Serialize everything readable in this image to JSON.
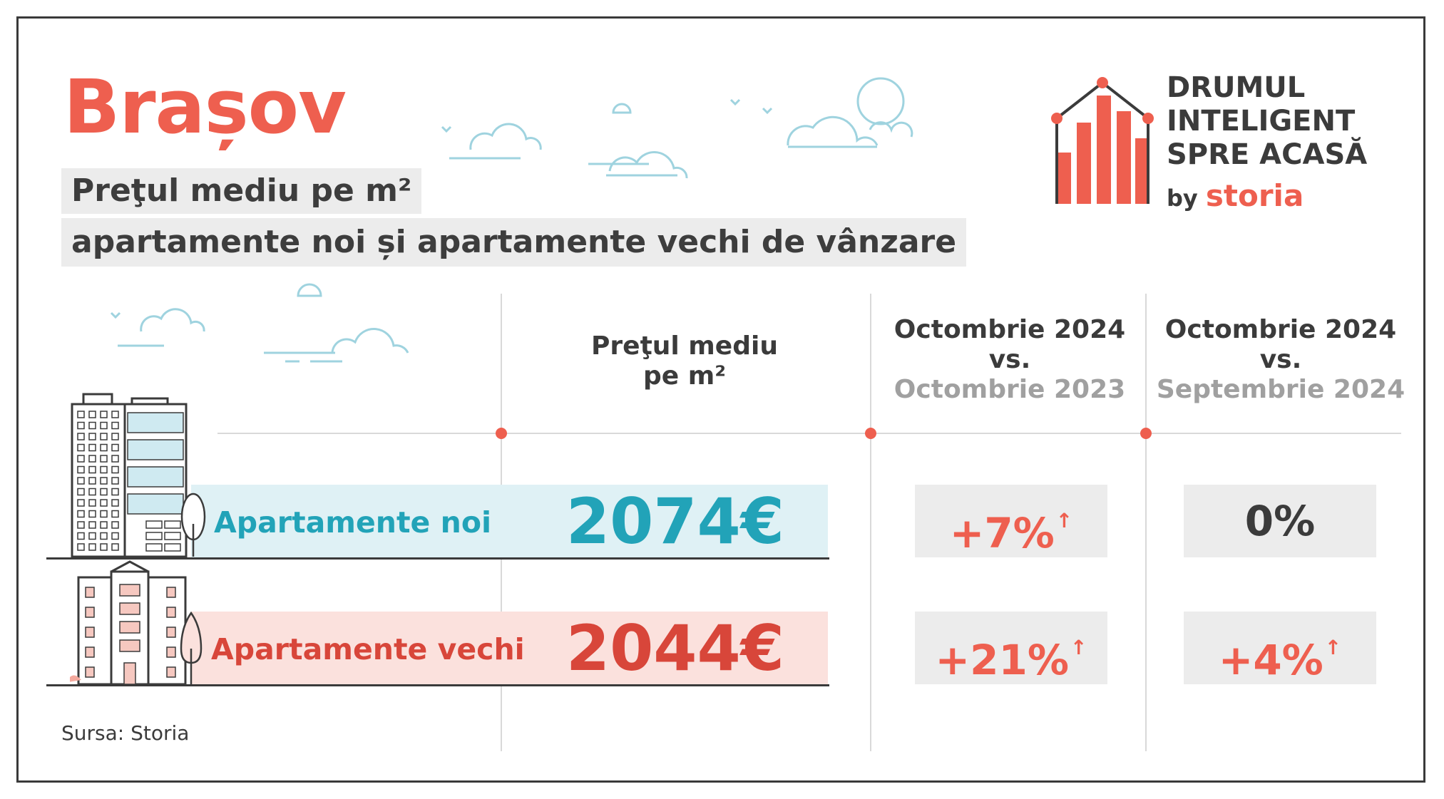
{
  "title": "Brașov",
  "subtitle_line1": "Preţul mediu pe m²",
  "subtitle_line2": "apartamente noi și apartamente vechi de vânzare",
  "brand": {
    "line1": "DRUMUL",
    "line2": "INTELIGENT",
    "line3": "SPRE ACASĂ",
    "by": "by",
    "name": "storia"
  },
  "columns": {
    "price_head_line1": "Preţul mediu",
    "price_head_line2": "pe m²",
    "yoy_line1": "Octombrie 2024",
    "yoy_line2": "vs.",
    "yoy_line3": "Octombrie 2023",
    "mom_line1": "Octombrie 2024",
    "mom_line2": "vs.",
    "mom_line3": "Septembrie 2024"
  },
  "rows": [
    {
      "label": "Apartamente noi",
      "price": "2074€",
      "yoy": "+7%",
      "yoy_arrow": "↑",
      "mom": "0%",
      "mom_arrow": ""
    },
    {
      "label": "Apartamente vechi",
      "price": "2044€",
      "yoy": "+21%",
      "yoy_arrow": "↑",
      "mom": "+4%",
      "mom_arrow": "↑"
    }
  ],
  "source": "Sursa: Storia",
  "colors": {
    "accent": "#ee5f4f",
    "teal": "#22a3b8",
    "darkred": "#d8463a",
    "text": "#3b3b3b",
    "muted": "#a0a0a0",
    "box": "#ececec"
  }
}
